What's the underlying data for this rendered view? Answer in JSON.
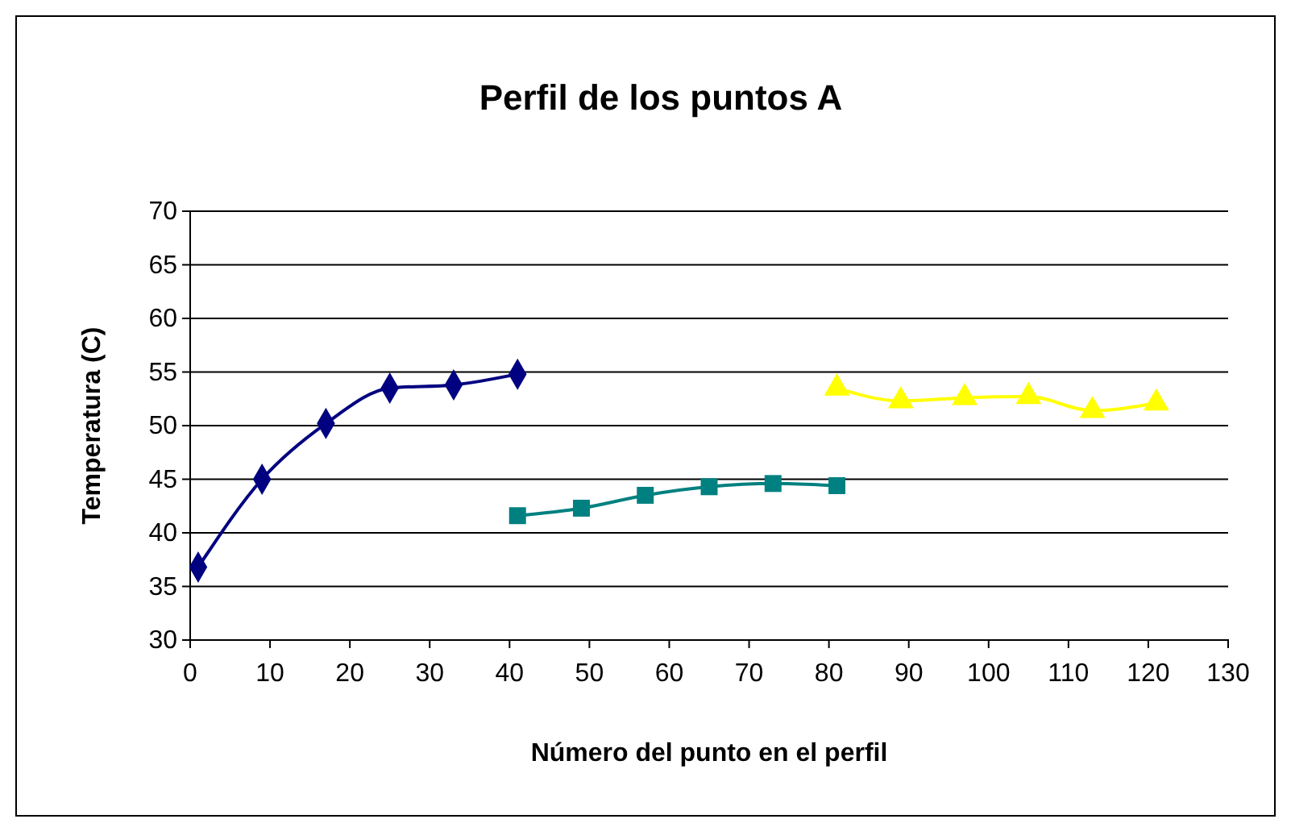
{
  "chart_data": {
    "type": "line",
    "title": "Perfil de los puntos A",
    "xlabel": "Número del punto en el perfil",
    "ylabel": "Temperatura (C)",
    "xlim": [
      0,
      130
    ],
    "xticks": [
      0,
      10,
      20,
      30,
      40,
      50,
      60,
      70,
      80,
      90,
      100,
      110,
      120,
      130
    ],
    "ylim": [
      30,
      70
    ],
    "yticks": [
      30,
      35,
      40,
      45,
      50,
      55,
      60,
      65,
      70
    ],
    "grid": "y",
    "series": [
      {
        "color": "#000080",
        "marker": "diamond",
        "x": [
          1,
          9,
          17,
          25,
          33,
          41
        ],
        "values": [
          36.8,
          45.0,
          50.2,
          53.5,
          53.8,
          54.8
        ]
      },
      {
        "color": "#008080",
        "marker": "square",
        "x": [
          41,
          49,
          57,
          65,
          73,
          81
        ],
        "values": [
          41.6,
          42.3,
          43.5,
          44.3,
          44.6,
          44.4
        ]
      },
      {
        "color": "#ffff00",
        "marker": "triangle",
        "x": [
          81,
          89,
          97,
          105,
          113,
          121
        ],
        "values": [
          53.5,
          52.3,
          52.6,
          52.7,
          51.4,
          52.1
        ]
      }
    ]
  }
}
